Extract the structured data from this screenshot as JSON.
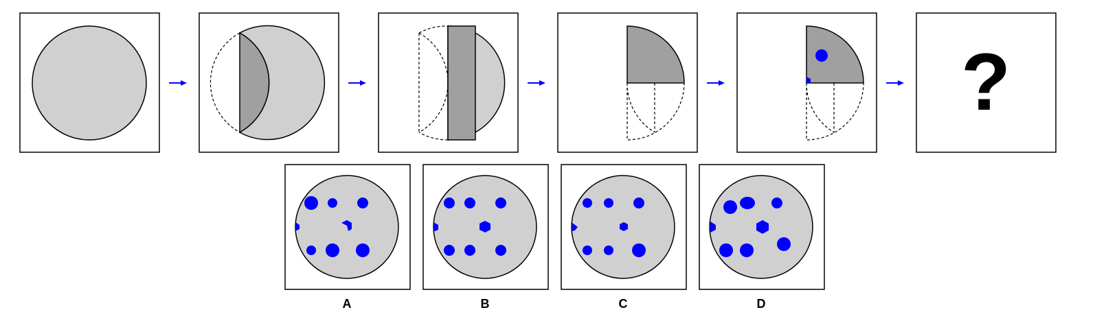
{
  "question_mark": "?",
  "options": [
    {
      "label": "A"
    },
    {
      "label": "B"
    },
    {
      "label": "C"
    },
    {
      "label": "D"
    }
  ],
  "colors": {
    "paper_fill": "#d0d0d0",
    "folded_fill": "#a0a0a0",
    "hole_fill": "#0000ff",
    "arrow": "#0000ff",
    "frame_stroke": "#000000",
    "background": "#ffffff"
  },
  "icons": {
    "arrow": "right-arrow-icon"
  }
}
